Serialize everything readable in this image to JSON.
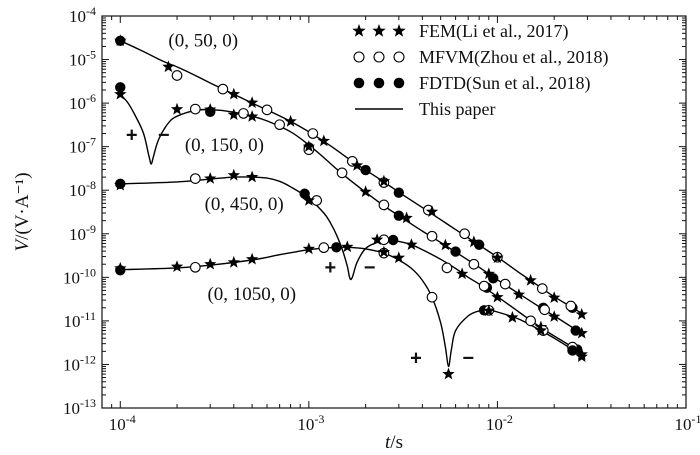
{
  "chart_data": {
    "type": "line",
    "xlabel": "t/s",
    "ylabel": "V/(V·A⁻¹)",
    "xscale": "log",
    "yscale": "log",
    "xlim": [
      8e-05,
      0.1
    ],
    "ylim": [
      1e-13,
      0.0001
    ],
    "xticks": [
      {
        "value": 0.0001,
        "base": "10",
        "exp": "-4"
      },
      {
        "value": 0.001,
        "base": "10",
        "exp": "-3"
      },
      {
        "value": 0.01,
        "base": "10",
        "exp": "-2"
      },
      {
        "value": 0.1,
        "base": "10",
        "exp": "-1"
      }
    ],
    "yticks": [
      {
        "value": 0.0001,
        "base": "10",
        "exp": "-4"
      },
      {
        "value": 1e-05,
        "base": "10",
        "exp": "-5"
      },
      {
        "value": 1e-06,
        "base": "10",
        "exp": "-6"
      },
      {
        "value": 1e-07,
        "base": "10",
        "exp": "-7"
      },
      {
        "value": 1e-08,
        "base": "10",
        "exp": "-8"
      },
      {
        "value": 1e-09,
        "base": "10",
        "exp": "-9"
      },
      {
        "value": 1e-10,
        "base": "10",
        "exp": "-10"
      },
      {
        "value": 1e-11,
        "base": "10",
        "exp": "-11"
      },
      {
        "value": 1e-12,
        "base": "10",
        "exp": "-12"
      },
      {
        "value": 1e-13,
        "base": "10",
        "exp": "-13"
      }
    ],
    "legend": {
      "position": "top-right",
      "entries": [
        {
          "label": "FEM(Li et al., 2017)",
          "marker": "star"
        },
        {
          "label": "MFVM(Zhou et al., 2018)",
          "marker": "open-circle"
        },
        {
          "label": "FDTD(Sun et al., 2018)",
          "marker": "filled-circle"
        },
        {
          "label": "This paper",
          "marker": "line"
        }
      ]
    },
    "curves": [
      {
        "label": "(0, 50, 0)",
        "label_at": {
          "x": 0.00018,
          "y": 2e-05
        },
        "line": [
          [
            0.0001,
            2.7e-05
          ],
          [
            0.00013,
            1.6e-05
          ],
          [
            0.00017,
            9e-06
          ],
          [
            0.0002,
            6.8e-06
          ],
          [
            0.00025,
            4.3e-06
          ],
          [
            0.0003,
            2.9e-06
          ],
          [
            0.0004,
            1.6e-06
          ],
          [
            0.0005,
            1e-06
          ],
          [
            0.0006,
            7e-07
          ],
          [
            0.0008,
            3.8e-07
          ],
          [
            0.001,
            2.2e-07
          ],
          [
            0.0013,
            1.05e-07
          ],
          [
            0.0017,
            4.6e-08
          ],
          [
            0.002,
            2.9e-08
          ],
          [
            0.0025,
            1.55e-08
          ],
          [
            0.003,
            9e-09
          ],
          [
            0.004,
            4e-09
          ],
          [
            0.005,
            2.1e-09
          ],
          [
            0.006,
            1.25e-09
          ],
          [
            0.008,
            5.5e-10
          ],
          [
            0.01,
            2.9e-10
          ],
          [
            0.013,
            1.3e-10
          ],
          [
            0.017,
            5.8e-11
          ],
          [
            0.02,
            3.6e-11
          ],
          [
            0.025,
            2e-11
          ],
          [
            0.028,
            1.5e-11
          ]
        ],
        "fem": [
          [
            0.0001,
            2.7e-05
          ],
          [
            0.00018,
            6.8e-06
          ],
          [
            0.0004,
            1.6e-06
          ],
          [
            0.0005,
            1.02e-06
          ],
          [
            0.0008,
            3.8e-07
          ],
          [
            0.0012,
            1.35e-07
          ],
          [
            0.0018,
            3.7e-08
          ],
          [
            0.0025,
            1.6e-08
          ],
          [
            0.0045,
            3.2e-09
          ],
          [
            0.0075,
            6.5e-10
          ],
          [
            0.01,
            2.8e-10
          ],
          [
            0.015,
            8.5e-11
          ],
          [
            0.02,
            3.4e-11
          ],
          [
            0.028,
            1.4e-11
          ]
        ],
        "mfvm": [
          [
            0.0002,
            4.3e-06
          ],
          [
            0.00035,
            2.1e-06
          ],
          [
            0.0006,
            7e-07
          ],
          [
            0.00105,
            2e-07
          ],
          [
            0.0017,
            4.6e-08
          ],
          [
            0.0025,
            1.5e-08
          ],
          [
            0.0043,
            3.5e-09
          ],
          [
            0.0067,
            1e-09
          ],
          [
            0.01,
            2.9e-10
          ],
          [
            0.0173,
            5.5e-11
          ],
          [
            0.0245,
            2.2e-11
          ]
        ],
        "fdtd": [
          [
            0.0001,
            2.7e-05
          ],
          [
            0.002,
            2.9e-08
          ],
          [
            0.003,
            8.8e-09
          ],
          [
            0.008,
            5.6e-10
          ],
          [
            0.025,
            2e-11
          ]
        ]
      },
      {
        "label": "(0, 150, 0)",
        "label_at": {
          "x": 0.00022,
          "y": 8e-08
        },
        "signs": [
          {
            "text": "+",
            "x": 0.000115,
            "y": 1.3e-07
          },
          {
            "text": "−",
            "x": 0.00017,
            "y": 1.3e-07
          }
        ],
        "line": [
          [
            0.0001,
            1.6e-06
          ],
          [
            0.00011,
            1e-06
          ],
          [
            0.00012,
            5.2e-07
          ],
          [
            0.000133,
            2e-07
          ],
          [
            0.000142,
            6e-08
          ],
          [
            0.000146,
            4e-08
          ],
          [
            0.00015,
            6e-08
          ],
          [
            0.00016,
            1.5e-07
          ],
          [
            0.00018,
            3.5e-07
          ],
          [
            0.0002,
            5e-07
          ],
          [
            0.00025,
            6.8e-07
          ],
          [
            0.0003,
            7.1e-07
          ],
          [
            0.0004,
            6.2e-07
          ],
          [
            0.0005,
            5e-07
          ],
          [
            0.0006,
            3.9e-07
          ],
          [
            0.0008,
            2.2e-07
          ],
          [
            0.001,
            1.1e-07
          ],
          [
            0.0012,
            5.6e-08
          ],
          [
            0.0015,
            2.4e-08
          ],
          [
            0.002,
            9e-09
          ],
          [
            0.0025,
            4.4e-09
          ],
          [
            0.003,
            2.6e-09
          ],
          [
            0.004,
            1.15e-09
          ],
          [
            0.005,
            6.3e-10
          ],
          [
            0.006,
            3.8e-10
          ],
          [
            0.008,
            1.7e-10
          ],
          [
            0.01,
            8.8e-11
          ],
          [
            0.013,
            4.2e-11
          ],
          [
            0.017,
            2e-11
          ],
          [
            0.02,
            1.3e-11
          ],
          [
            0.025,
            7e-12
          ],
          [
            0.028,
            5e-12
          ]
        ],
        "fem": [
          [
            0.0001,
            1.6e-06
          ],
          [
            0.0002,
            7.2e-07
          ],
          [
            0.0003,
            7.1e-07
          ],
          [
            0.0004,
            5.4e-07
          ],
          [
            0.0005,
            4.9e-07
          ],
          [
            0.001,
            1e-07
          ],
          [
            0.002,
            9.2e-09
          ],
          [
            0.0033,
            2.3e-09
          ],
          [
            0.0053,
            5.5e-10
          ],
          [
            0.009,
            1.2e-10
          ],
          [
            0.013,
            4e-11
          ],
          [
            0.02,
            1.25e-11
          ],
          [
            0.028,
            5.2e-12
          ]
        ],
        "mfvm": [
          [
            0.00025,
            7.3e-07
          ],
          [
            0.00045,
            5.8e-07
          ],
          [
            0.0007,
            3.2e-07
          ],
          [
            0.001,
            8.5e-08
          ],
          [
            0.0015,
            2.5e-08
          ],
          [
            0.0025,
            4.6e-09
          ],
          [
            0.0045,
            8.8e-10
          ],
          [
            0.0075,
            2e-10
          ],
          [
            0.011,
            7e-11
          ],
          [
            0.0178,
            1.8e-11
          ]
        ],
        "fdtd": [
          [
            0.0001,
            2.3e-06
          ],
          [
            0.0003,
            6.3e-07
          ],
          [
            0.001,
            9.6e-08
          ],
          [
            0.003,
            2.6e-09
          ],
          [
            0.006,
            3.9e-10
          ],
          [
            0.0095,
            9.5e-11
          ],
          [
            0.0175,
            2e-11
          ],
          [
            0.026,
            6e-12
          ]
        ]
      },
      {
        "label": "(0, 450, 0)",
        "label_at": {
          "x": 0.00028,
          "y": 3.5e-09
        },
        "signs": [
          {
            "text": "+",
            "x": 0.0013,
            "y": 1.2e-10
          },
          {
            "text": "−",
            "x": 0.0021,
            "y": 1.2e-10
          }
        ],
        "line": [
          [
            0.0001,
            1.4e-08
          ],
          [
            0.0002,
            1.55e-08
          ],
          [
            0.0003,
            1.8e-08
          ],
          [
            0.0004,
            2e-08
          ],
          [
            0.0005,
            2e-08
          ],
          [
            0.0006,
            1.9e-08
          ],
          [
            0.0007,
            1.6e-08
          ],
          [
            0.0008,
            1.2e-08
          ],
          [
            0.001,
            6.5e-09
          ],
          [
            0.0012,
            3e-09
          ],
          [
            0.0013,
            1.8e-09
          ],
          [
            0.0014,
            9.5e-10
          ],
          [
            0.0015,
            4.5e-10
          ],
          [
            0.0016,
            1.8e-10
          ],
          [
            0.00165,
            9.5e-11
          ],
          [
            0.0017,
            1e-10
          ],
          [
            0.0018,
            2.2e-10
          ],
          [
            0.002,
            4.6e-10
          ],
          [
            0.0023,
            6.3e-10
          ],
          [
            0.0026,
            7e-10
          ],
          [
            0.003,
            6.7e-10
          ],
          [
            0.0035,
            5.6e-10
          ],
          [
            0.004,
            4.3e-10
          ],
          [
            0.005,
            2.6e-10
          ],
          [
            0.006,
            1.6e-10
          ],
          [
            0.007,
            1e-10
          ],
          [
            0.008,
            7e-11
          ],
          [
            0.01,
            3.6e-11
          ],
          [
            0.013,
            1.6e-11
          ],
          [
            0.017,
            7e-12
          ],
          [
            0.02,
            4.5e-12
          ],
          [
            0.025,
            2.5e-12
          ],
          [
            0.028,
            1.8e-12
          ]
        ],
        "fem": [
          [
            0.0001,
            1.3e-08
          ],
          [
            0.0003,
            1.85e-08
          ],
          [
            0.0004,
            2.2e-08
          ],
          [
            0.0005,
            2e-08
          ],
          [
            0.001,
            5.8e-09
          ],
          [
            0.0023,
            7.3e-10
          ],
          [
            0.0035,
            5.6e-10
          ],
          [
            0.0065,
            1.2e-10
          ],
          [
            0.01,
            3.5e-11
          ],
          [
            0.017,
            7.2e-12
          ],
          [
            0.028,
            1.7e-12
          ]
        ],
        "mfvm": [
          [
            0.00025,
            1.85e-08
          ],
          [
            0.0011,
            5.8e-09
          ],
          [
            0.0025,
            7.3e-10
          ],
          [
            0.0054,
            1.65e-10
          ],
          [
            0.0085,
            6.3e-11
          ],
          [
            0.015,
            1e-11
          ],
          [
            0.025,
            2.5e-12
          ]
        ],
        "fdtd": [
          [
            0.0001,
            1.4e-08
          ],
          [
            0.00095,
            8.3e-09
          ],
          [
            0.0028,
            7.2e-10
          ],
          [
            0.0088,
            5.8e-11
          ],
          [
            0.0265,
            2.2e-12
          ]
        ]
      },
      {
        "label": "(0, 1050, 0)",
        "label_at": {
          "x": 0.00029,
          "y": 3e-11
        },
        "signs": [
          {
            "text": "+",
            "x": 0.0037,
            "y": 1e-12
          },
          {
            "text": "−",
            "x": 0.007,
            "y": 1e-12
          }
        ],
        "line": [
          [
            0.0001,
            1.5e-10
          ],
          [
            0.0002,
            1.65e-10
          ],
          [
            0.0003,
            1.9e-10
          ],
          [
            0.0005,
            2.5e-10
          ],
          [
            0.0007,
            3.3e-10
          ],
          [
            0.001,
            4.3e-10
          ],
          [
            0.0013,
            4.8e-10
          ],
          [
            0.0016,
            4.9e-10
          ],
          [
            0.002,
            4.5e-10
          ],
          [
            0.0025,
            3.6e-10
          ],
          [
            0.003,
            2.5e-10
          ],
          [
            0.0035,
            1.6e-10
          ],
          [
            0.004,
            8.5e-11
          ],
          [
            0.0045,
            3.5e-11
          ],
          [
            0.005,
            9e-12
          ],
          [
            0.0053,
            2.5e-12
          ],
          [
            0.0055,
            9e-13
          ],
          [
            0.0057,
            2.2e-12
          ],
          [
            0.006,
            6e-12
          ],
          [
            0.007,
            1.3e-11
          ],
          [
            0.008,
            1.7e-11
          ],
          [
            0.009,
            1.75e-11
          ],
          [
            0.01,
            1.6e-11
          ],
          [
            0.013,
            1.1e-11
          ],
          [
            0.017,
            6e-12
          ],
          [
            0.02,
            4e-12
          ],
          [
            0.025,
            2.2e-12
          ],
          [
            0.028,
            1.6e-12
          ]
        ],
        "fem": [
          [
            0.0001,
            1.6e-10
          ],
          [
            0.0002,
            1.75e-10
          ],
          [
            0.0003,
            2e-10
          ],
          [
            0.0004,
            2.2e-10
          ],
          [
            0.0005,
            2.6e-10
          ],
          [
            0.001,
            4.5e-10
          ],
          [
            0.0016,
            5e-10
          ],
          [
            0.0025,
            3.8e-10
          ],
          [
            0.003,
            2.8e-10
          ],
          [
            0.0055,
            6e-13
          ],
          [
            0.009,
            1.7e-11
          ],
          [
            0.012,
            1.2e-11
          ],
          [
            0.017,
            6e-12
          ],
          [
            0.028,
            1.5e-12
          ]
        ],
        "mfvm": [
          [
            0.00025,
            1.7e-10
          ],
          [
            0.0012,
            4.8e-10
          ],
          [
            0.0025,
            3.6e-10
          ],
          [
            0.0045,
            3.5e-11
          ],
          [
            0.009,
            1.75e-11
          ],
          [
            0.0175,
            6e-12
          ]
        ],
        "fdtd": [
          [
            0.0001,
            1.45e-10
          ],
          [
            0.0014,
            4.9e-10
          ],
          [
            0.0085,
            1.75e-11
          ],
          [
            0.025,
            2.1e-12
          ]
        ]
      }
    ]
  }
}
